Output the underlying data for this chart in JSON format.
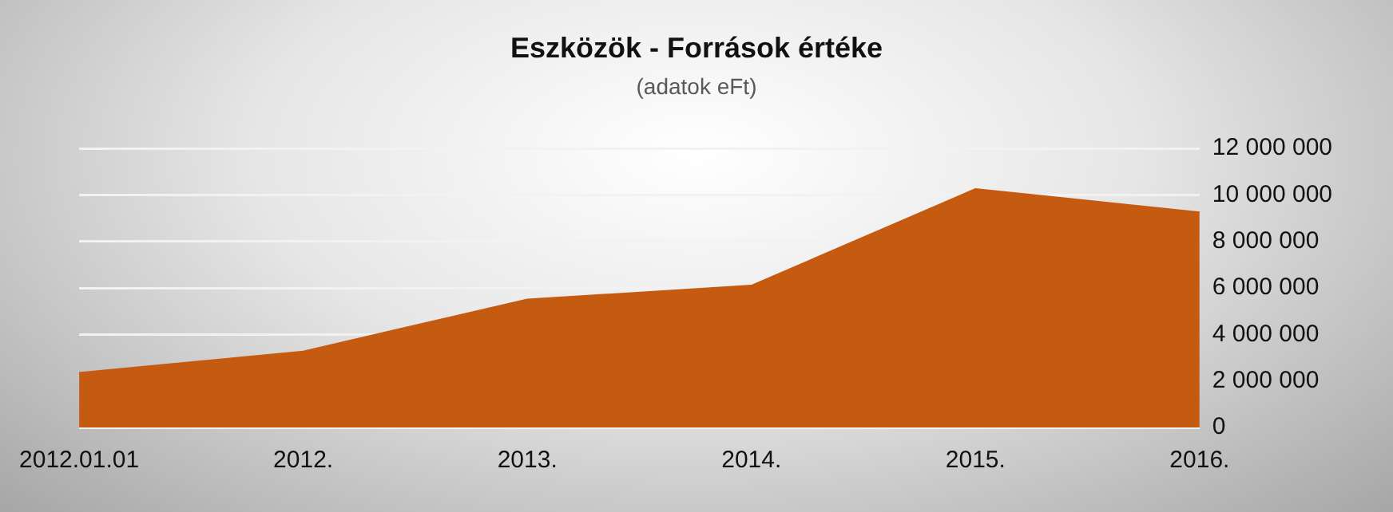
{
  "chart_data": {
    "type": "area",
    "title": "Eszközök - Források értéke",
    "subtitle": "(adatok eFt)",
    "categories": [
      "2012.01.01",
      "2012.",
      "2013.",
      "2014.",
      "2015.",
      "2016."
    ],
    "series": [
      {
        "color": "#c55a11",
        "values": [
          2350000,
          3270000,
          5500000,
          6100000,
          10250000,
          9250000
        ]
      }
    ],
    "ylim": [
      0,
      12000000
    ],
    "yticks": [
      {
        "value": 0,
        "label": "0"
      },
      {
        "value": 2000000,
        "label": "2 000 000"
      },
      {
        "value": 4000000,
        "label": "4 000 000"
      },
      {
        "value": 6000000,
        "label": "6 000 000"
      },
      {
        "value": 8000000,
        "label": "8 000 000"
      },
      {
        "value": 10000000,
        "label": "10 000 000"
      },
      {
        "value": 12000000,
        "label": "12 000 000"
      }
    ],
    "grid": "y",
    "legend": false
  }
}
